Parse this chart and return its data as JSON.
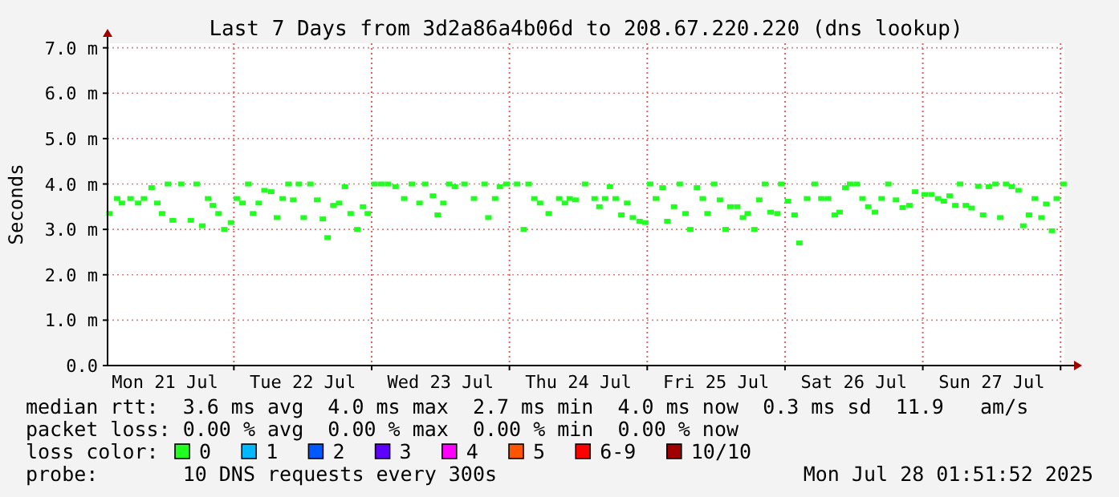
{
  "chart_data": {
    "type": "scatter",
    "title": "Last 7 Days from 3d2a86a4b06d to 208.67.220.220 (dns lookup)",
    "ylabel": "Seconds",
    "xlim": [
      "2025-07-21T02:00",
      "2025-07-28T00:40"
    ],
    "ylim": [
      0,
      7.1
    ],
    "xticks": [
      {
        "value": "2025-07-21T12:00",
        "label": "Mon 21 Jul"
      },
      {
        "value": "2025-07-22T00:00",
        "label": null
      },
      {
        "value": "2025-07-22T12:00",
        "label": "Tue 22 Jul"
      },
      {
        "value": "2025-07-23T00:00",
        "label": null
      },
      {
        "value": "2025-07-23T12:00",
        "label": "Wed 23 Jul"
      },
      {
        "value": "2025-07-24T00:00",
        "label": null
      },
      {
        "value": "2025-07-24T12:00",
        "label": "Thu 24 Jul"
      },
      {
        "value": "2025-07-25T00:00",
        "label": null
      },
      {
        "value": "2025-07-25T12:00",
        "label": "Fri 25 Jul"
      },
      {
        "value": "2025-07-26T00:00",
        "label": null
      },
      {
        "value": "2025-07-26T12:00",
        "label": "Sat 26 Jul"
      },
      {
        "value": "2025-07-27T00:00",
        "label": null
      },
      {
        "value": "2025-07-27T12:00",
        "label": "Sun 27 Jul"
      },
      {
        "value": "2025-07-28T00:00",
        "label": null
      }
    ],
    "yticks": [
      {
        "value": 0,
        "label": "0.0"
      },
      {
        "value": 1,
        "label": "1.0 m"
      },
      {
        "value": 2,
        "label": "2.0 m"
      },
      {
        "value": 3,
        "label": "3.0 m"
      },
      {
        "value": 4,
        "label": "4.0 m"
      },
      {
        "value": 5,
        "label": "5.0 m"
      },
      {
        "value": 6,
        "label": "6.0 m"
      },
      {
        "value": 7,
        "label": "7.0 m"
      }
    ],
    "grid": true,
    "marker": "square",
    "legend": "bottom",
    "legend_title": "loss color:",
    "x": [
      "2025-07-21T02:20",
      "2025-07-21T03:40",
      "2025-07-21T04:30",
      "2025-07-21T06:00",
      "2025-07-21T07:20",
      "2025-07-21T08:20",
      "2025-07-21T09:40",
      "2025-07-21T10:40",
      "2025-07-21T11:30",
      "2025-07-21T12:30",
      "2025-07-21T13:20",
      "2025-07-21T14:50",
      "2025-07-21T16:30",
      "2025-07-21T17:30",
      "2025-07-21T18:30",
      "2025-07-21T19:30",
      "2025-07-21T20:20",
      "2025-07-21T21:20",
      "2025-07-21T22:20",
      "2025-07-21T23:30",
      "2025-07-22T00:30",
      "2025-07-22T01:30",
      "2025-07-22T02:30",
      "2025-07-22T03:20",
      "2025-07-22T04:20",
      "2025-07-22T05:20",
      "2025-07-22T06:30",
      "2025-07-22T07:30",
      "2025-07-22T08:30",
      "2025-07-22T09:30",
      "2025-07-22T10:20",
      "2025-07-22T11:20",
      "2025-07-22T12:10",
      "2025-07-22T13:20",
      "2025-07-22T14:30",
      "2025-07-22T15:30",
      "2025-07-22T16:20",
      "2025-07-22T17:20",
      "2025-07-22T18:20",
      "2025-07-22T19:20",
      "2025-07-22T20:20",
      "2025-07-22T21:30",
      "2025-07-22T22:30",
      "2025-07-22T23:20",
      "2025-07-23T00:30",
      "2025-07-23T01:40",
      "2025-07-23T02:50",
      "2025-07-23T04:10",
      "2025-07-23T05:40",
      "2025-07-23T07:00",
      "2025-07-23T08:20",
      "2025-07-23T09:20",
      "2025-07-23T10:40",
      "2025-07-23T11:30",
      "2025-07-23T12:30",
      "2025-07-23T13:30",
      "2025-07-23T14:30",
      "2025-07-23T16:10",
      "2025-07-23T17:50",
      "2025-07-23T19:40",
      "2025-07-23T20:20",
      "2025-07-23T21:30",
      "2025-07-23T22:20",
      "2025-07-23T23:30",
      "2025-07-24T01:20",
      "2025-07-24T02:30",
      "2025-07-24T03:20",
      "2025-07-24T04:20",
      "2025-07-24T05:20",
      "2025-07-24T06:50",
      "2025-07-24T08:40",
      "2025-07-24T09:40",
      "2025-07-24T10:30",
      "2025-07-24T11:30",
      "2025-07-24T13:10",
      "2025-07-24T14:50",
      "2025-07-24T15:40",
      "2025-07-24T16:40",
      "2025-07-24T17:30",
      "2025-07-24T18:30",
      "2025-07-24T19:30",
      "2025-07-24T20:30",
      "2025-07-24T21:30",
      "2025-07-24T22:40",
      "2025-07-24T23:40",
      "2025-07-25T00:30",
      "2025-07-25T01:30",
      "2025-07-25T02:40",
      "2025-07-25T03:30",
      "2025-07-25T04:40",
      "2025-07-25T05:40",
      "2025-07-25T06:40",
      "2025-07-25T07:30",
      "2025-07-25T08:40",
      "2025-07-25T09:40",
      "2025-07-25T10:30",
      "2025-07-25T11:40",
      "2025-07-25T12:40",
      "2025-07-25T13:40",
      "2025-07-25T14:30",
      "2025-07-25T15:40",
      "2025-07-25T16:40",
      "2025-07-25T17:30",
      "2025-07-25T18:40",
      "2025-07-25T19:30",
      "2025-07-25T20:30",
      "2025-07-25T21:30",
      "2025-07-25T22:40",
      "2025-07-25T23:20",
      "2025-07-26T00:30",
      "2025-07-26T01:40",
      "2025-07-26T02:30",
      "2025-07-26T03:50",
      "2025-07-26T05:10",
      "2025-07-26T06:20",
      "2025-07-26T07:30",
      "2025-07-26T08:40",
      "2025-07-26T09:30",
      "2025-07-26T10:30",
      "2025-07-26T11:20",
      "2025-07-26T12:30",
      "2025-07-26T13:30",
      "2025-07-26T14:30",
      "2025-07-26T15:40",
      "2025-07-26T16:50",
      "2025-07-26T18:00",
      "2025-07-26T19:20",
      "2025-07-26T20:30",
      "2025-07-26T21:40",
      "2025-07-26T22:40",
      "2025-07-27T00:20",
      "2025-07-27T01:30",
      "2025-07-27T02:40",
      "2025-07-27T03:40",
      "2025-07-27T04:40",
      "2025-07-27T05:40",
      "2025-07-27T06:30",
      "2025-07-27T07:30",
      "2025-07-27T08:30",
      "2025-07-27T09:40",
      "2025-07-27T10:30",
      "2025-07-27T11:30",
      "2025-07-27T12:40",
      "2025-07-27T13:30",
      "2025-07-27T14:30",
      "2025-07-27T15:30",
      "2025-07-27T16:40",
      "2025-07-27T17:30",
      "2025-07-27T18:30",
      "2025-07-27T19:30",
      "2025-07-27T20:40",
      "2025-07-27T21:30",
      "2025-07-27T22:30",
      "2025-07-27T23:20",
      "2025-07-28T00:30"
    ],
    "series": [
      {
        "name": "0",
        "color": "#20ff20",
        "values": [
          3.35,
          3.68,
          3.58,
          3.68,
          3.58,
          3.68,
          3.92,
          3.58,
          3.35,
          4.0,
          3.2,
          4.0,
          3.2,
          4.0,
          3.08,
          3.68,
          3.53,
          3.35,
          3.0,
          3.15,
          3.68,
          3.58,
          4.0,
          3.35,
          3.58,
          3.86,
          3.83,
          3.26,
          3.68,
          4.0,
          3.65,
          4.0,
          3.26,
          4.0,
          3.65,
          3.23,
          2.82,
          3.53,
          3.58,
          3.94,
          3.35,
          3.0,
          3.5,
          3.35,
          4.0,
          4.0,
          4.0,
          3.94,
          3.68,
          4.0,
          3.58,
          4.0,
          3.74,
          3.32,
          3.58,
          4.0,
          3.94,
          4.0,
          3.68,
          4.0,
          3.26,
          3.68,
          3.94,
          4.0,
          4.0,
          3.0,
          4.0,
          3.68,
          3.58,
          3.35,
          3.68,
          3.58,
          3.68,
          3.65,
          4.0,
          3.68,
          3.5,
          3.68,
          3.94,
          3.68,
          3.32,
          3.58,
          3.26,
          3.18,
          3.15,
          4.0,
          3.68,
          3.92,
          3.18,
          3.5,
          4.0,
          3.35,
          3.0,
          3.92,
          3.68,
          3.35,
          4.0,
          3.65,
          3.0,
          3.5,
          3.5,
          3.26,
          3.35,
          3.0,
          3.65,
          4.0,
          3.38,
          3.35,
          4.0,
          3.62,
          3.32,
          2.7,
          3.68,
          4.0,
          3.68,
          3.68,
          3.32,
          3.38,
          3.92,
          4.0,
          4.0,
          3.68,
          3.5,
          3.38,
          3.68,
          4.0,
          3.65,
          3.48,
          3.53,
          3.83,
          3.77,
          3.77,
          3.68,
          3.62,
          3.74,
          3.53,
          4.0,
          3.53,
          3.47,
          3.95,
          3.32,
          3.94,
          4.0,
          3.26,
          4.0,
          3.94,
          3.86,
          3.08,
          3.32,
          3.68,
          3.26,
          3.56,
          2.97,
          3.68,
          4.0
        ]
      },
      {
        "name": "1",
        "color": "#00b8ff",
        "values": [
          null,
          null,
          null,
          null,
          null,
          null,
          null,
          null,
          null,
          null,
          null,
          null,
          null,
          null,
          null,
          null,
          null,
          null,
          null,
          null,
          null,
          null,
          null,
          null,
          null,
          null,
          null,
          null,
          null,
          null,
          null,
          null,
          null,
          null,
          null,
          null,
          null,
          null,
          null,
          null,
          null,
          null,
          null,
          null,
          null,
          null,
          null,
          null,
          null,
          null,
          null,
          null,
          null,
          null,
          null,
          null,
          null,
          null,
          null,
          null,
          null,
          null,
          null,
          null,
          null,
          null,
          null,
          null,
          null,
          null,
          null,
          null,
          null,
          null,
          null,
          null,
          null,
          null,
          null,
          null,
          null,
          null,
          null,
          null,
          null,
          null,
          null,
          null,
          null,
          null,
          null,
          null,
          null,
          null,
          null,
          null,
          null,
          null,
          null,
          null,
          null,
          null,
          null,
          null,
          null,
          null,
          null,
          null,
          null,
          null,
          null,
          null,
          null,
          null,
          null,
          null,
          null,
          null,
          null,
          null,
          null,
          null,
          null,
          null,
          null,
          null,
          null,
          null,
          null,
          null,
          null,
          null,
          null,
          null,
          null,
          null,
          null,
          null,
          null,
          null,
          null,
          null,
          null,
          null,
          null,
          null,
          null,
          null,
          null,
          null,
          null,
          null,
          null,
          null,
          null
        ]
      },
      {
        "name": "2",
        "color": "#0059ff",
        "values": [
          null,
          null,
          null,
          null,
          null,
          null,
          null,
          null,
          null,
          null,
          null,
          null,
          null,
          null,
          null,
          null,
          null,
          null,
          null,
          null,
          null,
          null,
          null,
          null,
          null,
          null,
          null,
          null,
          null,
          null,
          null,
          null,
          null,
          null,
          null,
          null,
          null,
          null,
          null,
          null,
          null,
          null,
          null,
          null,
          null,
          null,
          null,
          null,
          null,
          null,
          null,
          null,
          null,
          null,
          null,
          null,
          null,
          null,
          null,
          null,
          null,
          null,
          null,
          null,
          null,
          null,
          null,
          null,
          null,
          null,
          null,
          null,
          null,
          null,
          null,
          null,
          null,
          null,
          null,
          null,
          null,
          null,
          null,
          null,
          null,
          null,
          null,
          null,
          null,
          null,
          null,
          null,
          null,
          null,
          null,
          null,
          null,
          null,
          null,
          null,
          null,
          null,
          null,
          null,
          null,
          null,
          null,
          null,
          null,
          null,
          null,
          null,
          null,
          null,
          null,
          null,
          null,
          null,
          null,
          null,
          null,
          null,
          null,
          null,
          null,
          null,
          null,
          null,
          null,
          null,
          null,
          null,
          null,
          null,
          null,
          null,
          null,
          null,
          null,
          null,
          null,
          null,
          null,
          null,
          null,
          null,
          null,
          null,
          null,
          null,
          null,
          null,
          null,
          null,
          null
        ]
      },
      {
        "name": "3",
        "color": "#5e00ff",
        "values": [
          null,
          null,
          null,
          null,
          null,
          null,
          null,
          null,
          null,
          null,
          null,
          null,
          null,
          null,
          null,
          null,
          null,
          null,
          null,
          null,
          null,
          null,
          null,
          null,
          null,
          null,
          null,
          null,
          null,
          null,
          null,
          null,
          null,
          null,
          null,
          null,
          null,
          null,
          null,
          null,
          null,
          null,
          null,
          null,
          null,
          null,
          null,
          null,
          null,
          null,
          null,
          null,
          null,
          null,
          null,
          null,
          null,
          null,
          null,
          null,
          null,
          null,
          null,
          null,
          null,
          null,
          null,
          null,
          null,
          null,
          null,
          null,
          null,
          null,
          null,
          null,
          null,
          null,
          null,
          null,
          null,
          null,
          null,
          null,
          null,
          null,
          null,
          null,
          null,
          null,
          null,
          null,
          null,
          null,
          null,
          null,
          null,
          null,
          null,
          null,
          null,
          null,
          null,
          null,
          null,
          null,
          null,
          null,
          null,
          null,
          null,
          null,
          null,
          null,
          null,
          null,
          null,
          null,
          null,
          null,
          null,
          null,
          null,
          null,
          null,
          null,
          null,
          null,
          null,
          null,
          null,
          null,
          null,
          null,
          null,
          null,
          null,
          null,
          null,
          null,
          null,
          null,
          null,
          null,
          null,
          null,
          null,
          null,
          null,
          null,
          null,
          null,
          null,
          null,
          null
        ]
      },
      {
        "name": "4",
        "color": "#ff00ff",
        "values": [
          null,
          null,
          null,
          null,
          null,
          null,
          null,
          null,
          null,
          null,
          null,
          null,
          null,
          null,
          null,
          null,
          null,
          null,
          null,
          null,
          null,
          null,
          null,
          null,
          null,
          null,
          null,
          null,
          null,
          null,
          null,
          null,
          null,
          null,
          null,
          null,
          null,
          null,
          null,
          null,
          null,
          null,
          null,
          null,
          null,
          null,
          null,
          null,
          null,
          null,
          null,
          null,
          null,
          null,
          null,
          null,
          null,
          null,
          null,
          null,
          null,
          null,
          null,
          null,
          null,
          null,
          null,
          null,
          null,
          null,
          null,
          null,
          null,
          null,
          null,
          null,
          null,
          null,
          null,
          null,
          null,
          null,
          null,
          null,
          null,
          null,
          null,
          null,
          null,
          null,
          null,
          null,
          null,
          null,
          null,
          null,
          null,
          null,
          null,
          null,
          null,
          null,
          null,
          null,
          null,
          null,
          null,
          null,
          null,
          null,
          null,
          null,
          null,
          null,
          null,
          null,
          null,
          null,
          null,
          null,
          null,
          null,
          null,
          null,
          null,
          null,
          null,
          null,
          null,
          null,
          null,
          null,
          null,
          null,
          null,
          null,
          null,
          null,
          null,
          null,
          null,
          null,
          null,
          null,
          null,
          null,
          null,
          null,
          null,
          null,
          null,
          null,
          null,
          null,
          null
        ]
      },
      {
        "name": "5",
        "color": "#ff5500",
        "values": [
          null,
          null,
          null,
          null,
          null,
          null,
          null,
          null,
          null,
          null,
          null,
          null,
          null,
          null,
          null,
          null,
          null,
          null,
          null,
          null,
          null,
          null,
          null,
          null,
          null,
          null,
          null,
          null,
          null,
          null,
          null,
          null,
          null,
          null,
          null,
          null,
          null,
          null,
          null,
          null,
          null,
          null,
          null,
          null,
          null,
          null,
          null,
          null,
          null,
          null,
          null,
          null,
          null,
          null,
          null,
          null,
          null,
          null,
          null,
          null,
          null,
          null,
          null,
          null,
          null,
          null,
          null,
          null,
          null,
          null,
          null,
          null,
          null,
          null,
          null,
          null,
          null,
          null,
          null,
          null,
          null,
          null,
          null,
          null,
          null,
          null,
          null,
          null,
          null,
          null,
          null,
          null,
          null,
          null,
          null,
          null,
          null,
          null,
          null,
          null,
          null,
          null,
          null,
          null,
          null,
          null,
          null,
          null,
          null,
          null,
          null,
          null,
          null,
          null,
          null,
          null,
          null,
          null,
          null,
          null,
          null,
          null,
          null,
          null,
          null,
          null,
          null,
          null,
          null,
          null,
          null,
          null,
          null,
          null,
          null,
          null,
          null,
          null,
          null,
          null,
          null,
          null,
          null,
          null,
          null,
          null,
          null,
          null,
          null,
          null,
          null,
          null,
          null,
          null,
          null
        ]
      },
      {
        "name": "6-9",
        "color": "#ff0000",
        "values": [
          null,
          null,
          null,
          null,
          null,
          null,
          null,
          null,
          null,
          null,
          null,
          null,
          null,
          null,
          null,
          null,
          null,
          null,
          null,
          null,
          null,
          null,
          null,
          null,
          null,
          null,
          null,
          null,
          null,
          null,
          null,
          null,
          null,
          null,
          null,
          null,
          null,
          null,
          null,
          null,
          null,
          null,
          null,
          null,
          null,
          null,
          null,
          null,
          null,
          null,
          null,
          null,
          null,
          null,
          null,
          null,
          null,
          null,
          null,
          null,
          null,
          null,
          null,
          null,
          null,
          null,
          null,
          null,
          null,
          null,
          null,
          null,
          null,
          null,
          null,
          null,
          null,
          null,
          null,
          null,
          null,
          null,
          null,
          null,
          null,
          null,
          null,
          null,
          null,
          null,
          null,
          null,
          null,
          null,
          null,
          null,
          null,
          null,
          null,
          null,
          null,
          null,
          null,
          null,
          null,
          null,
          null,
          null,
          null,
          null,
          null,
          null,
          null,
          null,
          null,
          null,
          null,
          null,
          null,
          null,
          null,
          null,
          null,
          null,
          null,
          null,
          null,
          null,
          null,
          null,
          null,
          null,
          null,
          null,
          null,
          null,
          null,
          null,
          null,
          null,
          null,
          null,
          null,
          null,
          null,
          null,
          null,
          null,
          null,
          null,
          null,
          null,
          null,
          null,
          null
        ]
      },
      {
        "name": "10/10",
        "color": "#a10000",
        "values": [
          null,
          null,
          null,
          null,
          null,
          null,
          null,
          null,
          null,
          null,
          null,
          null,
          null,
          null,
          null,
          null,
          null,
          null,
          null,
          null,
          null,
          null,
          null,
          null,
          null,
          null,
          null,
          null,
          null,
          null,
          null,
          null,
          null,
          null,
          null,
          null,
          null,
          null,
          null,
          null,
          null,
          null,
          null,
          null,
          null,
          null,
          null,
          null,
          null,
          null,
          null,
          null,
          null,
          null,
          null,
          null,
          null,
          null,
          null,
          null,
          null,
          null,
          null,
          null,
          null,
          null,
          null,
          null,
          null,
          null,
          null,
          null,
          null,
          null,
          null,
          null,
          null,
          null,
          null,
          null,
          null,
          null,
          null,
          null,
          null,
          null,
          null,
          null,
          null,
          null,
          null,
          null,
          null,
          null,
          null,
          null,
          null,
          null,
          null,
          null,
          null,
          null,
          null,
          null,
          null,
          null,
          null,
          null,
          null,
          null,
          null,
          null,
          null,
          null,
          null,
          null,
          null,
          null,
          null,
          null,
          null,
          null,
          null,
          null,
          null,
          null,
          null,
          null,
          null,
          null,
          null,
          null,
          null,
          null,
          null,
          null,
          null,
          null,
          null,
          null,
          null,
          null,
          null,
          null,
          null,
          null,
          null,
          null,
          null,
          null,
          null,
          null,
          null,
          null,
          null
        ]
      }
    ],
    "annotations": [
      "median rtt:  3.6 ms avg  4.0 ms max  2.7 ms min  4.0 ms now  0.3 ms sd  11.9   am/s",
      "packet loss: 0.00 % avg  0.00 % max  0.00 % min  0.00 % now",
      "probe:       10 DNS requests every 300s",
      "Mon Jul 28 01:51:52 2025"
    ]
  }
}
